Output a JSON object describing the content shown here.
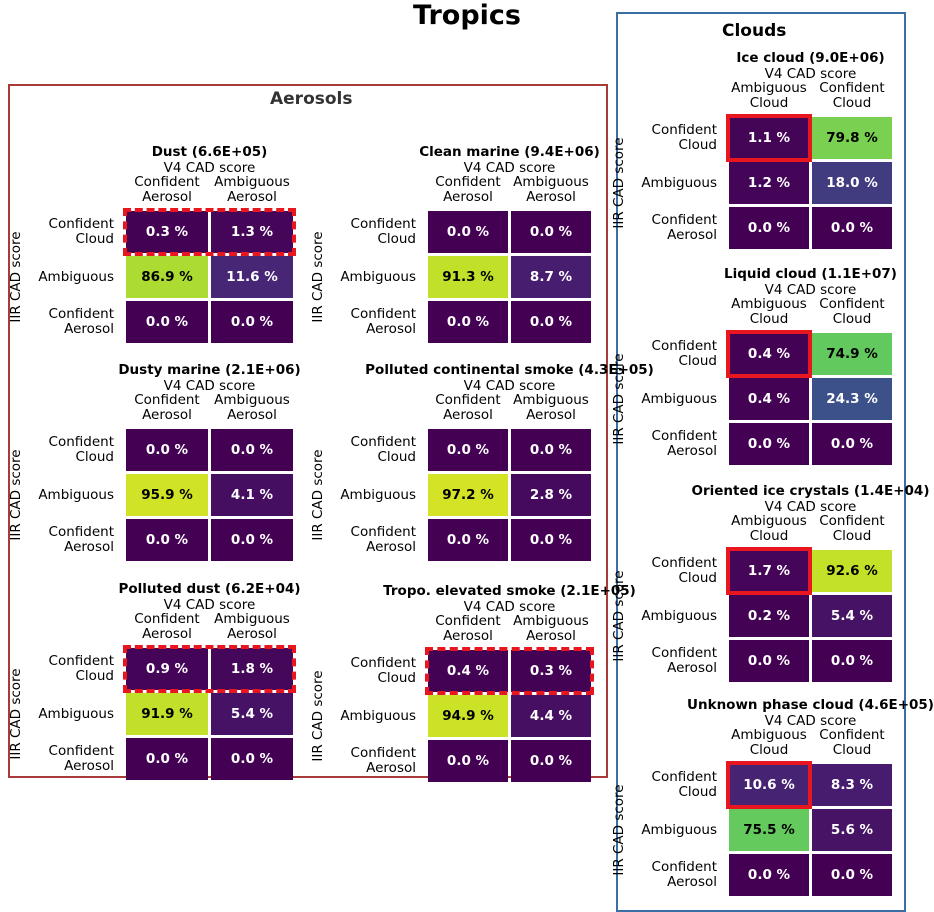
{
  "figure": {
    "title": "Tropics",
    "aerosols_title": "Aerosols",
    "clouds_title": "Clouds"
  },
  "chart_data": [
    {
      "type": "heatmap",
      "group": "aerosols",
      "title": "Dust (6.6E+05)",
      "xlabel": "V4 CAD score",
      "ylabel": "IIR CAD score",
      "columns": [
        "Confident\nAerosol",
        "Ambiguous\nAerosol"
      ],
      "rows": [
        "Confident\nCloud",
        "Ambiguous",
        "Confident\nAerosol"
      ],
      "values": [
        [
          0.3,
          1.3
        ],
        [
          86.9,
          11.6
        ],
        [
          0.0,
          0.0
        ]
      ],
      "labels": [
        [
          "0.3 %",
          "1.3 %"
        ],
        [
          "86.9 %",
          "11.6 %"
        ],
        [
          "0.0 %",
          "0.0 %"
        ]
      ],
      "highlight": {
        "row": 0,
        "style": "dashed",
        "cells": [
          0,
          1
        ]
      }
    },
    {
      "type": "heatmap",
      "group": "aerosols",
      "title": "Clean marine (9.4E+06)",
      "xlabel": "V4 CAD score",
      "ylabel": "IIR CAD score",
      "columns": [
        "Confident\nAerosol",
        "Ambiguous\nAerosol"
      ],
      "rows": [
        "Confident\nCloud",
        "Ambiguous",
        "Confident\nAerosol"
      ],
      "values": [
        [
          0.0,
          0.0
        ],
        [
          91.3,
          8.7
        ],
        [
          0.0,
          0.0
        ]
      ],
      "labels": [
        [
          "0.0 %",
          "0.0 %"
        ],
        [
          "91.3 %",
          "8.7 %"
        ],
        [
          "0.0 %",
          "0.0 %"
        ]
      ],
      "highlight": null
    },
    {
      "type": "heatmap",
      "group": "aerosols",
      "title": "Dusty marine (2.1E+06)",
      "xlabel": "V4 CAD score",
      "ylabel": "IIR CAD score",
      "columns": [
        "Confident\nAerosol",
        "Ambiguous\nAerosol"
      ],
      "rows": [
        "Confident\nCloud",
        "Ambiguous",
        "Confident\nAerosol"
      ],
      "values": [
        [
          0.0,
          0.0
        ],
        [
          95.9,
          4.1
        ],
        [
          0.0,
          0.0
        ]
      ],
      "labels": [
        [
          "0.0 %",
          "0.0 %"
        ],
        [
          "95.9 %",
          "4.1 %"
        ],
        [
          "0.0 %",
          "0.0 %"
        ]
      ],
      "highlight": null
    },
    {
      "type": "heatmap",
      "group": "aerosols",
      "title": "Polluted continental smoke (4.3E+05)",
      "xlabel": "V4 CAD score",
      "ylabel": "IIR CAD score",
      "columns": [
        "Confident\nAerosol",
        "Ambiguous\nAerosol"
      ],
      "rows": [
        "Confident\nCloud",
        "Ambiguous",
        "Confident\nAerosol"
      ],
      "values": [
        [
          0.0,
          0.0
        ],
        [
          97.2,
          2.8
        ],
        [
          0.0,
          0.0
        ]
      ],
      "labels": [
        [
          "0.0 %",
          "0.0 %"
        ],
        [
          "97.2 %",
          "2.8 %"
        ],
        [
          "0.0 %",
          "0.0 %"
        ]
      ],
      "highlight": null
    },
    {
      "type": "heatmap",
      "group": "aerosols",
      "title": "Polluted dust (6.2E+04)",
      "xlabel": "V4 CAD score",
      "ylabel": "IIR CAD score",
      "columns": [
        "Confident\nAerosol",
        "Ambiguous\nAerosol"
      ],
      "rows": [
        "Confident\nCloud",
        "Ambiguous",
        "Confident\nAerosol"
      ],
      "values": [
        [
          0.9,
          1.8
        ],
        [
          91.9,
          5.4
        ],
        [
          0.0,
          0.0
        ]
      ],
      "labels": [
        [
          "0.9 %",
          "1.8 %"
        ],
        [
          "91.9 %",
          "5.4 %"
        ],
        [
          "0.0 %",
          "0.0 %"
        ]
      ],
      "highlight": {
        "row": 0,
        "style": "dashed",
        "cells": [
          0,
          1
        ]
      }
    },
    {
      "type": "heatmap",
      "group": "aerosols",
      "title": "Tropo. elevated smoke (2.1E+05)",
      "xlabel": "V4 CAD score",
      "ylabel": "IIR CAD score",
      "columns": [
        "Confident\nAerosol",
        "Ambiguous\nAerosol"
      ],
      "rows": [
        "Confident\nCloud",
        "Ambiguous",
        "Confident\nAerosol"
      ],
      "values": [
        [
          0.4,
          0.3
        ],
        [
          94.9,
          4.4
        ],
        [
          0.0,
          0.0
        ]
      ],
      "labels": [
        [
          "0.4 %",
          "0.3 %"
        ],
        [
          "94.9 %",
          "4.4 %"
        ],
        [
          "0.0 %",
          "0.0 %"
        ]
      ],
      "highlight": {
        "row": 0,
        "style": "dashed",
        "cells": [
          0,
          1
        ]
      }
    },
    {
      "type": "heatmap",
      "group": "clouds",
      "title": "Ice cloud (9.0E+06)",
      "xlabel": "V4 CAD score",
      "ylabel": "IIR CAD score",
      "columns": [
        "Ambiguous\nCloud",
        "Confident\nCloud"
      ],
      "rows": [
        "Confident\nCloud",
        "Ambiguous",
        "Confident\nAerosol"
      ],
      "values": [
        [
          1.1,
          79.8
        ],
        [
          1.2,
          18.0
        ],
        [
          0.0,
          0.0
        ]
      ],
      "labels": [
        [
          "1.1 %",
          "79.8 %"
        ],
        [
          "1.2 %",
          "18.0 %"
        ],
        [
          "0.0 %",
          "0.0 %"
        ]
      ],
      "highlight": {
        "row": 0,
        "style": "solid",
        "cells": [
          0
        ]
      }
    },
    {
      "type": "heatmap",
      "group": "clouds",
      "title": "Liquid cloud (1.1E+07)",
      "xlabel": "V4 CAD score",
      "ylabel": "IIR CAD score",
      "columns": [
        "Ambiguous\nCloud",
        "Confident\nCloud"
      ],
      "rows": [
        "Confident\nCloud",
        "Ambiguous",
        "Confident\nAerosol"
      ],
      "values": [
        [
          0.4,
          74.9
        ],
        [
          0.4,
          24.3
        ],
        [
          0.0,
          0.0
        ]
      ],
      "labels": [
        [
          "0.4 %",
          "74.9 %"
        ],
        [
          "0.4 %",
          "24.3 %"
        ],
        [
          "0.0 %",
          "0.0 %"
        ]
      ],
      "highlight": {
        "row": 0,
        "style": "solid",
        "cells": [
          0
        ]
      }
    },
    {
      "type": "heatmap",
      "group": "clouds",
      "title": "Oriented ice crystals (1.4E+04)",
      "xlabel": "V4 CAD score",
      "ylabel": "IIR CAD score",
      "columns": [
        "Ambiguous\nCloud",
        "Confident\nCloud"
      ],
      "rows": [
        "Confident\nCloud",
        "Ambiguous",
        "Confident\nAerosol"
      ],
      "values": [
        [
          1.7,
          92.6
        ],
        [
          0.2,
          5.4
        ],
        [
          0.0,
          0.0
        ]
      ],
      "labels": [
        [
          "1.7 %",
          "92.6 %"
        ],
        [
          "0.2 %",
          "5.4 %"
        ],
        [
          "0.0 %",
          "0.0 %"
        ]
      ],
      "highlight": {
        "row": 0,
        "style": "solid",
        "cells": [
          0
        ]
      }
    },
    {
      "type": "heatmap",
      "group": "clouds",
      "title": "Unknown phase cloud (4.6E+05)",
      "xlabel": "V4 CAD score",
      "ylabel": "IIR CAD score",
      "columns": [
        "Ambiguous\nCloud",
        "Confident\nCloud"
      ],
      "rows": [
        "Confident\nCloud",
        "Ambiguous",
        "Confident\nAerosol"
      ],
      "values": [
        [
          10.6,
          8.3
        ],
        [
          75.5,
          5.6
        ],
        [
          0.0,
          0.0
        ]
      ],
      "labels": [
        [
          "10.6 %",
          "8.3 %"
        ],
        [
          "75.5 %",
          "5.6 %"
        ],
        [
          "0.0 %",
          "0.0 %"
        ]
      ],
      "highlight": {
        "row": 0,
        "style": "solid",
        "cells": [
          0
        ]
      }
    }
  ]
}
